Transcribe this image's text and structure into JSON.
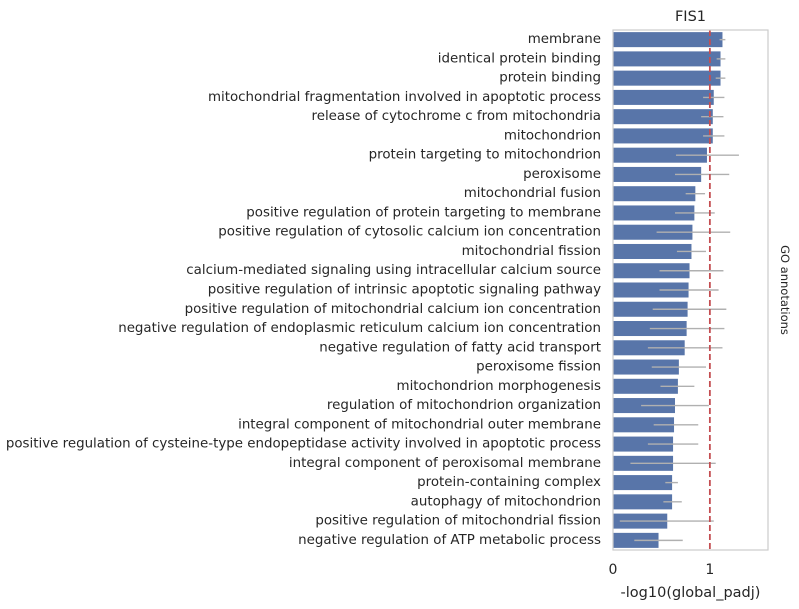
{
  "chart_data": {
    "type": "bar",
    "orientation": "horizontal",
    "title": "FIS1",
    "xlabel": "-log10(global_padj)",
    "ylabel": "GO annotations",
    "xlim": [
      0,
      1.6
    ],
    "xticks": [
      0,
      1
    ],
    "reference_line": 1,
    "colors": {
      "bar": "#5875a9",
      "error": "#b0b0b0",
      "reference": "#c44e52",
      "frame": "#cccccc"
    },
    "categories": [
      "membrane",
      "identical protein binding",
      "protein binding",
      "mitochondrial fragmentation involved in apoptotic process",
      "release of cytochrome c from mitochondria",
      "mitochondrion",
      "protein targeting to mitochondrion",
      "peroxisome",
      "mitochondrial fusion",
      "positive regulation of protein targeting to membrane",
      "positive regulation of cytosolic calcium ion concentration",
      "mitochondrial fission",
      "calcium-mediated signaling using intracellular calcium source",
      "positive regulation of intrinsic apoptotic signaling pathway",
      "positive regulation of mitochondrial calcium ion concentration",
      "negative regulation of endoplasmic reticulum calcium ion concentration",
      "negative regulation of fatty acid transport",
      "peroxisome fission",
      "mitochondrion morphogenesis",
      "regulation of mitochondrion organization",
      "integral component of mitochondrial outer membrane",
      "positive regulation of cysteine-type endopeptidase activity involved in apoptotic process",
      "integral component of peroxisomal membrane",
      "protein-containing complex",
      "autophagy of mitochondrion",
      "positive regulation of mitochondrial fission",
      "negative regulation of ATP metabolic process"
    ],
    "values": [
      1.13,
      1.11,
      1.11,
      1.04,
      1.03,
      1.03,
      0.97,
      0.91,
      0.85,
      0.84,
      0.82,
      0.81,
      0.79,
      0.78,
      0.77,
      0.76,
      0.74,
      0.68,
      0.67,
      0.64,
      0.63,
      0.62,
      0.62,
      0.61,
      0.61,
      0.56,
      0.47
    ],
    "error_low": [
      1.1,
      1.07,
      1.06,
      0.93,
      0.91,
      0.93,
      0.65,
      0.64,
      0.75,
      0.64,
      0.45,
      0.66,
      0.48,
      0.48,
      0.41,
      0.38,
      0.36,
      0.4,
      0.49,
      0.29,
      0.42,
      0.36,
      0.18,
      0.54,
      0.52,
      0.07,
      0.22
    ],
    "error_high": [
      1.16,
      1.16,
      1.16,
      1.15,
      1.14,
      1.15,
      1.3,
      1.2,
      0.95,
      1.05,
      1.21,
      0.96,
      1.14,
      1.09,
      1.17,
      1.15,
      1.13,
      0.96,
      0.84,
      0.99,
      0.88,
      0.88,
      1.06,
      0.67,
      0.71,
      1.04,
      0.72
    ]
  }
}
